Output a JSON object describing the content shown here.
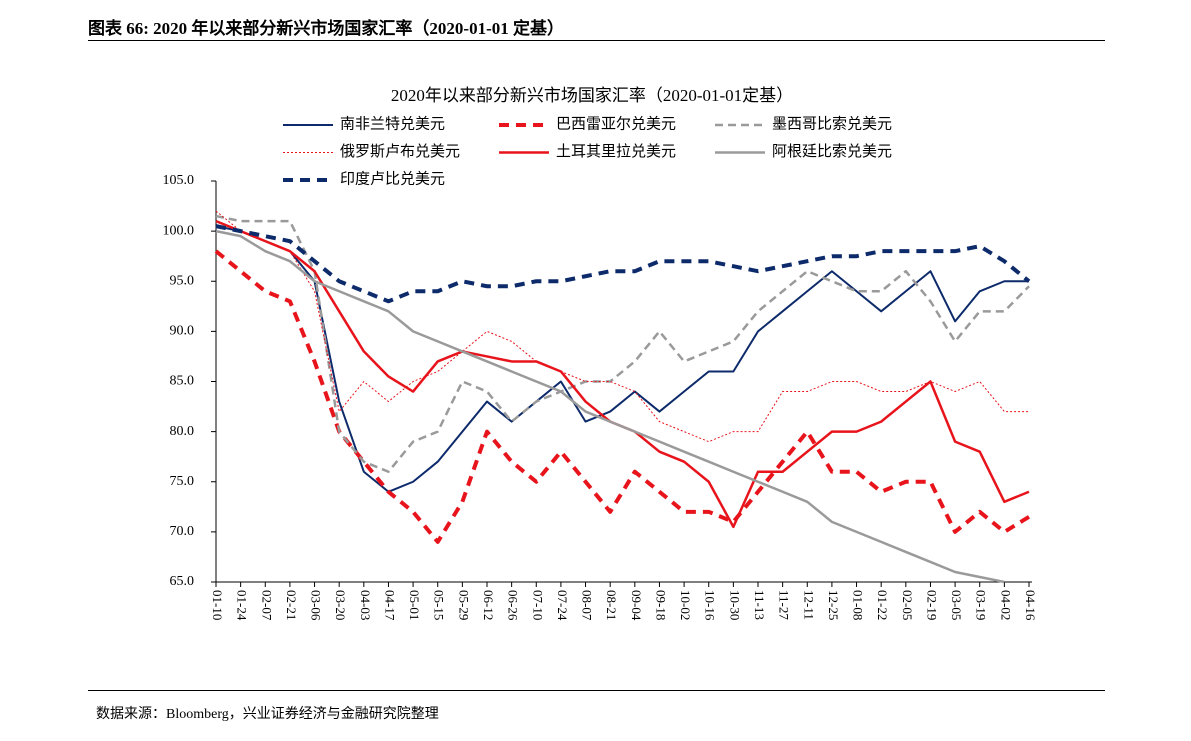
{
  "header": {
    "title": "图表 66:  2020 年以来部分新兴市场国家汇率（2020-01-01 定基）"
  },
  "chart_data": {
    "type": "line",
    "title": "2020年以来部分新兴市场国家汇率（2020-01-01定基）",
    "categories": [
      "01-10",
      "01-24",
      "02-07",
      "02-21",
      "03-06",
      "03-20",
      "04-03",
      "04-17",
      "05-01",
      "05-15",
      "05-29",
      "06-12",
      "06-26",
      "07-10",
      "07-24",
      "08-07",
      "08-21",
      "09-04",
      "09-18",
      "10-02",
      "10-16",
      "10-30",
      "11-13",
      "11-27",
      "12-11",
      "12-25",
      "01-08",
      "01-22",
      "02-05",
      "02-19",
      "03-05",
      "03-19",
      "04-02",
      "04-16"
    ],
    "ylim": [
      65,
      105
    ],
    "yticks": [
      {
        "value": 65,
        "label": "65.0"
      },
      {
        "value": 70,
        "label": "70.0"
      },
      {
        "value": 75,
        "label": "75.0"
      },
      {
        "value": 80,
        "label": "80.0"
      },
      {
        "value": 85,
        "label": "85.0"
      },
      {
        "value": 90,
        "label": "90.0"
      },
      {
        "value": 95,
        "label": "95.0"
      },
      {
        "value": 100,
        "label": "100.0"
      },
      {
        "value": 105,
        "label": "105.0"
      }
    ],
    "grid": false,
    "series": [
      {
        "name": "南非兰特兑美元",
        "color": "#0d2a6b",
        "line_style": "solid",
        "width": 2,
        "values": [
          100.5,
          100,
          99,
          98,
          95,
          83,
          76,
          74,
          75,
          77,
          80,
          83,
          81,
          83,
          85,
          81,
          82,
          84,
          82,
          84,
          86,
          86,
          90,
          92,
          94,
          96,
          94,
          92,
          94,
          96,
          91,
          94,
          95,
          95
        ]
      },
      {
        "name": "巴西雷亚尔兑美元",
        "color": "#e8141c",
        "line_style": "dashed",
        "width": 4,
        "values": [
          98,
          96,
          94,
          93,
          87,
          80,
          77,
          74,
          72,
          69,
          73,
          80,
          77,
          75,
          78,
          75,
          72,
          76,
          74,
          72,
          72,
          71,
          74,
          77,
          80,
          76,
          76,
          74,
          75,
          75,
          70,
          72,
          70,
          71.5
        ]
      },
      {
        "name": "墨西哥比索兑美元",
        "color": "#9a9a9a",
        "line_style": "dashed",
        "width": 2.5,
        "values": [
          101.5,
          101,
          101,
          101,
          96,
          80,
          77,
          76,
          79,
          80,
          85,
          84,
          81,
          83,
          84,
          85,
          85,
          87,
          90,
          87,
          88,
          89,
          92,
          94,
          96,
          95,
          94,
          94,
          96,
          93,
          89,
          92,
          92,
          94.5
        ]
      },
      {
        "name": "俄罗斯卢布兑美元",
        "color": "#e8141c",
        "line_style": "dotted",
        "width": 1,
        "values": [
          102,
          100,
          99,
          98,
          94,
          82,
          85,
          83,
          85,
          86,
          88,
          90,
          89,
          87,
          86,
          85,
          85,
          84,
          81,
          80,
          79,
          80,
          80,
          84,
          84,
          85,
          85,
          84,
          84,
          85,
          84,
          85,
          82,
          82
        ]
      },
      {
        "name": "土耳其里拉兑美元",
        "color": "#e8141c",
        "line_style": "solid",
        "width": 2.5,
        "values": [
          101,
          100,
          99,
          98,
          96,
          92,
          88,
          85.5,
          84,
          87,
          88,
          87.5,
          87,
          87,
          86,
          83,
          81,
          80,
          78,
          77,
          75,
          70.5,
          76,
          76,
          78,
          80,
          80,
          81,
          83,
          85,
          79,
          78,
          73,
          74
        ]
      },
      {
        "name": "阿根廷比索兑美元",
        "color": "#9a9a9a",
        "line_style": "solid",
        "width": 2.5,
        "values": [
          100,
          99.5,
          98,
          97,
          95,
          94,
          93,
          92,
          90,
          89,
          88,
          87,
          86,
          85,
          84,
          82,
          81,
          80,
          79,
          78,
          77,
          76,
          75,
          74,
          73,
          71,
          70,
          69,
          68,
          67,
          66,
          65.5,
          65,
          null
        ]
      },
      {
        "name": "印度卢比兑美元",
        "color": "#0d2a6b",
        "line_style": "dashed",
        "width": 4,
        "values": [
          100.5,
          100,
          99.5,
          99,
          97,
          95,
          94,
          93,
          94,
          94,
          95,
          94.5,
          94.5,
          95,
          95,
          95.5,
          96,
          96,
          97,
          97,
          97,
          96.5,
          96,
          96.5,
          97,
          97.5,
          97.5,
          98,
          98,
          98,
          98,
          98.5,
          97,
          95
        ]
      }
    ]
  },
  "footer": {
    "source": "数据来源：Bloomberg，兴业证券经济与金融研究院整理"
  }
}
